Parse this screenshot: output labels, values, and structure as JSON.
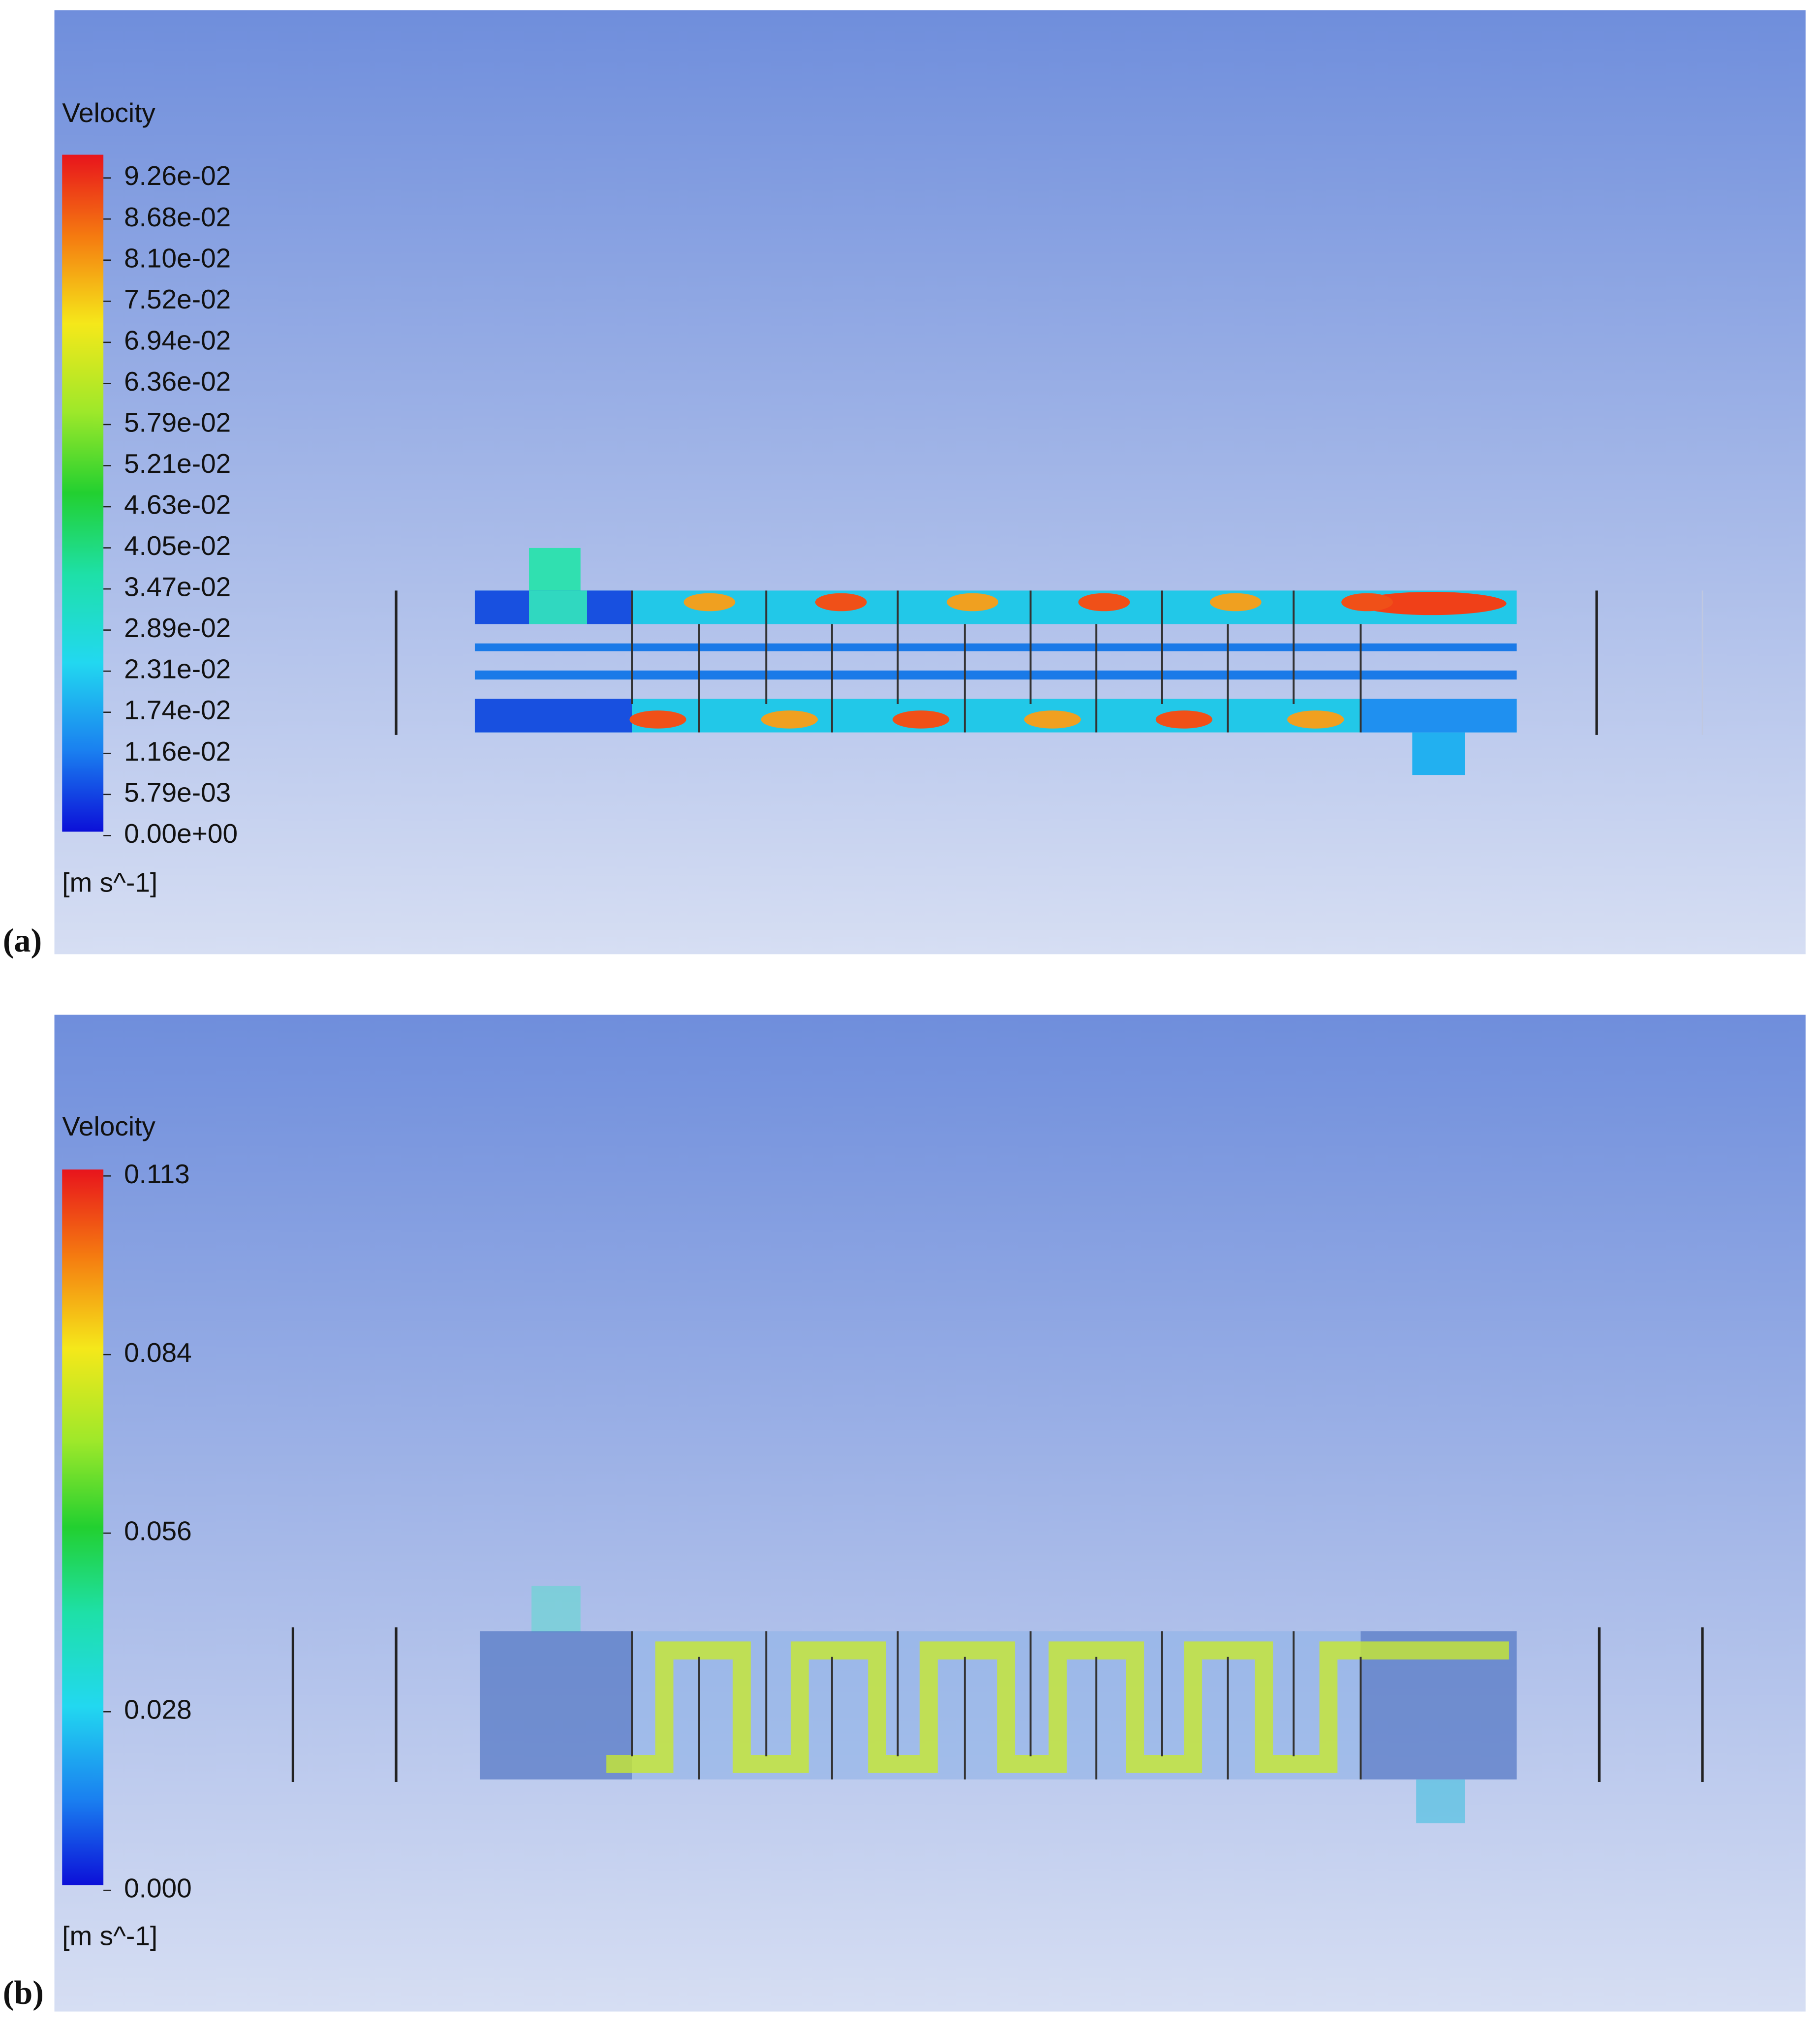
{
  "panel_a": {
    "label": "(a)",
    "legend": {
      "title": "Velocity",
      "ticks": [
        "9.26e-02",
        "8.68e-02",
        "8.10e-02",
        "7.52e-02",
        "6.94e-02",
        "6.36e-02",
        "5.79e-02",
        "5.21e-02",
        "4.63e-02",
        "4.05e-02",
        "3.47e-02",
        "2.89e-02",
        "2.31e-02",
        "1.74e-02",
        "1.16e-02",
        "5.79e-03",
        "0.00e+00"
      ],
      "unit": "[m s^-1]"
    }
  },
  "panel_b": {
    "label": "(b)",
    "legend": {
      "title": "Velocity",
      "ticks": [
        "0.113",
        "0.084",
        "0.056",
        "0.028",
        "0.000"
      ],
      "unit": "[m s^-1]"
    }
  }
}
